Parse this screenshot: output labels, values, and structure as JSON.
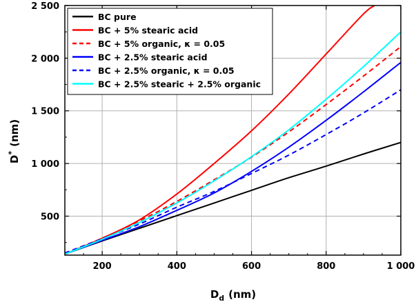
{
  "chart_data": {
    "type": "line",
    "xlabel": "D",
    "xlabel_sub": "d",
    "xlabel_unit": "(nm)",
    "ylabel": "D",
    "ylabel_sup": "*",
    "ylabel_unit": "(nm)",
    "xlim": [
      100,
      1000
    ],
    "ylim": [
      130,
      2500
    ],
    "x_ticks": [
      200,
      400,
      600,
      800,
      1000
    ],
    "x_tick_labels": [
      "200",
      "400",
      "600",
      "800",
      "1 000"
    ],
    "y_ticks": [
      500,
      1000,
      1500,
      2000,
      2500
    ],
    "y_tick_labels": [
      "500",
      "1 000",
      "1 500",
      "2 000",
      "2 500"
    ],
    "grid": true,
    "legend_position": "top-left",
    "series": [
      {
        "name": "BC pure",
        "color": "#000000",
        "dash": "solid",
        "x": [
          100,
          200,
          300,
          400,
          500,
          600,
          700,
          800,
          900,
          1000
        ],
        "y": [
          140,
          265,
          385,
          505,
          625,
          745,
          865,
          975,
          1090,
          1200
        ]
      },
      {
        "name": "BC + 5% stearic acid",
        "color": "#ff0000",
        "dash": "solid",
        "x": [
          100,
          200,
          300,
          400,
          500,
          600,
          700,
          800,
          900,
          930
        ],
        "y": [
          140,
          290,
          465,
          710,
          1000,
          1310,
          1660,
          2040,
          2420,
          2500
        ]
      },
      {
        "name": "BC + 5% organic, κ = 0.05",
        "color": "#ff0000",
        "dash": "dashed",
        "x": [
          100,
          200,
          300,
          400,
          500,
          600,
          700,
          800,
          900,
          1000
        ],
        "y": [
          150,
          290,
          455,
          640,
          845,
          1060,
          1300,
          1560,
          1830,
          2110
        ]
      },
      {
        "name": "BC + 2.5% stearic acid",
        "color": "#0000ff",
        "dash": "solid",
        "x": [
          100,
          200,
          300,
          400,
          500,
          600,
          700,
          800,
          900,
          1000
        ],
        "y": [
          140,
          270,
          400,
          555,
          720,
          925,
          1155,
          1410,
          1680,
          1960
        ]
      },
      {
        "name": "BC + 2.5% organic, κ = 0.05",
        "color": "#0000ff",
        "dash": "dashed",
        "x": [
          100,
          200,
          300,
          400,
          500,
          600,
          700,
          800,
          900,
          1000
        ],
        "y": [
          150,
          285,
          425,
          585,
          735,
          905,
          1080,
          1275,
          1480,
          1700
        ]
      },
      {
        "name": "BC + 2.5% stearic + 2.5% organic",
        "color": "#00ffff",
        "dash": "solid",
        "x": [
          100,
          200,
          300,
          400,
          500,
          600,
          700,
          800,
          900,
          1000
        ],
        "y": [
          140,
          280,
          440,
          625,
          835,
          1065,
          1320,
          1610,
          1920,
          2250
        ]
      }
    ]
  }
}
